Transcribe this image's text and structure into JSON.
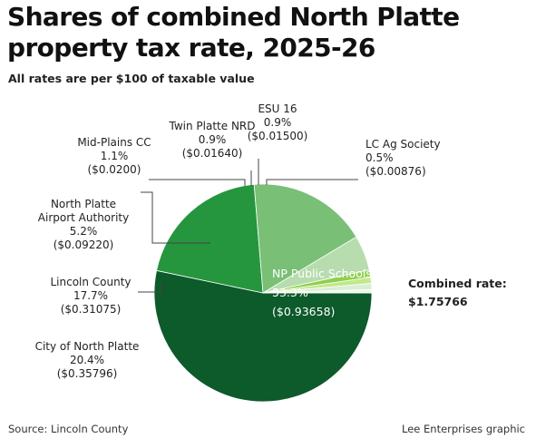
{
  "header": {
    "title_line1": "Shares of combined North Platte",
    "title_line2": "property tax rate, 2025-26",
    "subtitle": "All rates are per $100 of taxable value"
  },
  "combined": {
    "label": "Combined rate:",
    "value": "$1.75766"
  },
  "footer": {
    "source": "Source: Lincoln County",
    "credit": "Lee Enterprises graphic"
  },
  "chart_data": {
    "type": "pie",
    "title": "Shares of combined North Platte property tax rate, 2025-26",
    "subtitle": "All rates are per $100 of taxable value",
    "slices": [
      {
        "name": "NP Public Schools",
        "percent": 53.3,
        "pct_text": "53.3%",
        "rate_text": "($0.93658)",
        "value": 0.93658,
        "color": "#0d5a2b"
      },
      {
        "name": "City of North Platte",
        "percent": 20.4,
        "pct_text": "20.4%",
        "rate_text": "($0.35796)",
        "value": 0.35796,
        "color": "#25963e"
      },
      {
        "name": "Lincoln County",
        "percent": 17.7,
        "pct_text": "17.7%",
        "rate_text": "($0.31075)",
        "value": 0.31075,
        "color": "#79bf76"
      },
      {
        "name": "North Platte Airport Authority",
        "name_lines": [
          "North Platte",
          "Airport Authority"
        ],
        "percent": 5.2,
        "pct_text": "5.2%",
        "rate_text": "($0.09220)",
        "value": 0.0922,
        "color": "#b7dcae"
      },
      {
        "name": "Mid-Plains CC",
        "percent": 1.1,
        "pct_text": "1.1%",
        "rate_text": "($0.0200)",
        "value": 0.02,
        "color": "#8fd04e"
      },
      {
        "name": "Twin Platte NRD",
        "percent": 0.9,
        "pct_text": "0.9%",
        "rate_text": "($0.01640)",
        "value": 0.0164,
        "color": "#c3e88a"
      },
      {
        "name": "ESU 16",
        "percent": 0.9,
        "pct_text": "0.9%",
        "rate_text": "($0.01500)",
        "value": 0.015,
        "color": "#d8efd3"
      },
      {
        "name": "LC Ag Society",
        "percent": 0.5,
        "pct_text": "0.5%",
        "rate_text": "($0.00876)",
        "value": 0.00876,
        "color": "#eef7ea"
      }
    ]
  }
}
